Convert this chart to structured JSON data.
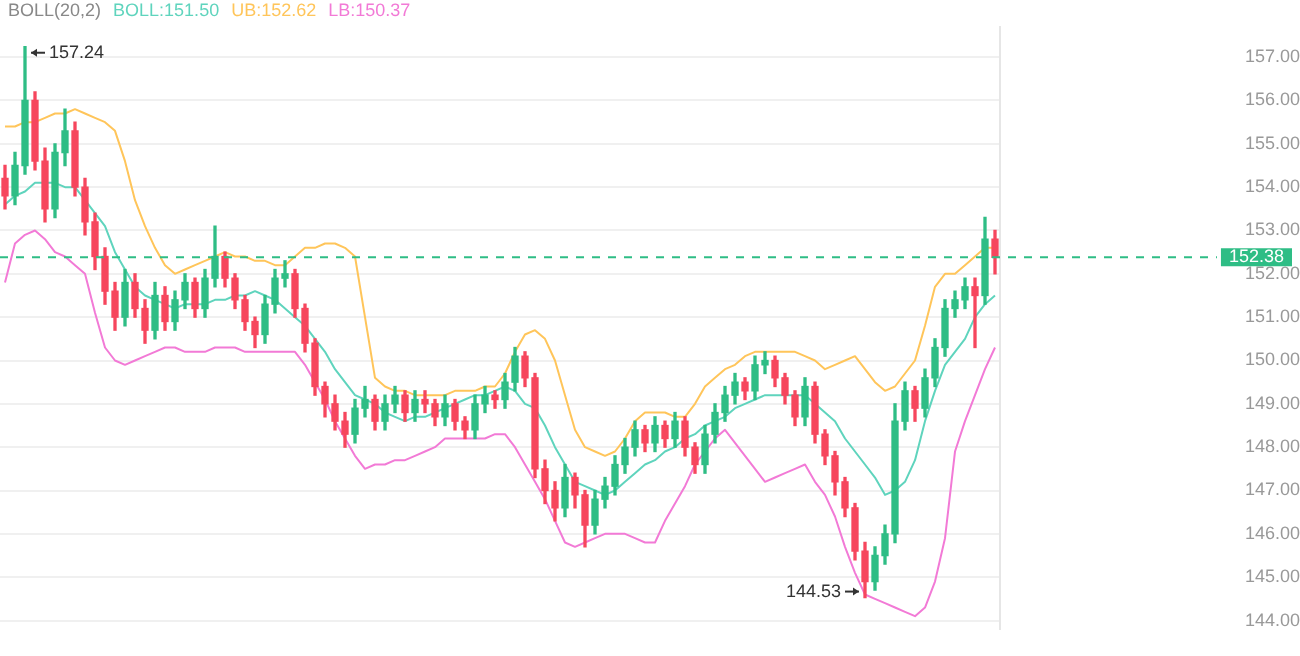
{
  "chart_data": {
    "type": "candlestick",
    "legend_title": "BOLL(20,2)",
    "tick_labels": "y",
    "grid": "y",
    "categories": [
      null,
      null,
      null,
      null,
      null,
      null,
      null,
      null,
      null,
      null,
      null,
      null,
      null,
      null,
      null,
      null,
      null,
      null,
      null,
      null,
      null,
      null,
      null,
      null,
      null,
      null,
      null,
      null,
      null,
      null,
      null,
      null,
      null,
      null,
      null,
      null,
      null,
      null,
      null,
      null,
      null,
      null,
      null,
      null,
      null,
      null,
      null,
      null,
      null,
      null,
      null,
      null,
      null,
      null,
      null,
      null,
      null,
      null,
      null,
      null,
      null,
      null,
      null,
      null,
      null,
      null,
      null,
      null,
      null,
      null,
      null,
      null,
      null,
      null,
      null,
      null,
      null,
      null,
      null,
      null,
      null,
      null,
      null,
      null,
      null,
      null,
      null,
      null,
      null,
      null,
      null,
      null,
      null,
      null,
      null,
      null,
      null,
      null,
      null,
      null
    ],
    "ylim": [
      143.8,
      157.7
    ],
    "yticks": [
      {
        "value": 144,
        "label": "144.00"
      },
      {
        "value": 145,
        "label": "145.00"
      },
      {
        "value": 146,
        "label": "146.00"
      },
      {
        "value": 147,
        "label": "147.00"
      },
      {
        "value": 148,
        "label": "148.00"
      },
      {
        "value": 149,
        "label": "149.00"
      },
      {
        "value": 150,
        "label": "150.00"
      },
      {
        "value": 151,
        "label": "151.00"
      },
      {
        "value": 152,
        "label": "152.00"
      },
      {
        "value": 153,
        "label": "153.00"
      },
      {
        "value": 154,
        "label": "154.00"
      },
      {
        "value": 155,
        "label": "155.00"
      },
      {
        "value": 156,
        "label": "156.00"
      },
      {
        "value": 157,
        "label": "157.00"
      }
    ],
    "ref_lines": [
      {
        "axis": "y",
        "value": 152.38,
        "label": "152.38",
        "color": "#2ebd85",
        "line_style": "dashed"
      }
    ],
    "annotations": [
      "157.24",
      "144.53"
    ],
    "series": [
      {
        "ohlc": [
          [
            154.2,
            154.5,
            153.5,
            153.8
          ],
          [
            153.8,
            154.8,
            153.6,
            154.5
          ],
          [
            154.5,
            157.24,
            154.3,
            156.0
          ],
          [
            156.0,
            156.2,
            154.4,
            154.6
          ],
          [
            154.6,
            154.9,
            153.2,
            153.5
          ],
          [
            153.5,
            155.0,
            153.3,
            154.8
          ],
          [
            154.8,
            155.8,
            154.5,
            155.3
          ],
          [
            155.3,
            155.5,
            153.8,
            154.0
          ],
          [
            154.0,
            154.2,
            152.9,
            153.2
          ],
          [
            153.2,
            153.4,
            152.1,
            152.4
          ],
          [
            152.4,
            152.6,
            151.3,
            151.6
          ],
          [
            151.6,
            151.8,
            150.7,
            151.0
          ],
          [
            151.0,
            152.1,
            150.8,
            151.8
          ],
          [
            151.8,
            152.0,
            151.0,
            151.2
          ],
          [
            151.2,
            151.4,
            150.4,
            150.7
          ],
          [
            150.7,
            151.8,
            150.5,
            151.5
          ],
          [
            151.5,
            151.7,
            150.7,
            150.9
          ],
          [
            150.9,
            151.6,
            150.7,
            151.4
          ],
          [
            151.4,
            152.0,
            151.2,
            151.8
          ],
          [
            151.8,
            151.9,
            151.0,
            151.2
          ],
          [
            151.2,
            152.1,
            151.0,
            151.9
          ],
          [
            151.9,
            153.1,
            151.7,
            152.4
          ],
          [
            152.4,
            152.5,
            151.7,
            151.9
          ],
          [
            151.9,
            152.0,
            151.2,
            151.4
          ],
          [
            151.4,
            151.5,
            150.7,
            150.9
          ],
          [
            150.9,
            151.0,
            150.3,
            150.6
          ],
          [
            150.6,
            151.5,
            150.4,
            151.3
          ],
          [
            151.3,
            152.1,
            151.1,
            151.9
          ],
          [
            151.9,
            152.3,
            151.7,
            152.0
          ],
          [
            152.0,
            152.1,
            151.0,
            151.2
          ],
          [
            151.2,
            151.3,
            150.2,
            150.4
          ],
          [
            150.4,
            150.5,
            149.2,
            149.4
          ],
          [
            149.4,
            149.5,
            148.7,
            149.0
          ],
          [
            149.0,
            149.2,
            148.4,
            148.6
          ],
          [
            148.6,
            148.8,
            148.0,
            148.3
          ],
          [
            148.3,
            149.1,
            148.1,
            148.9
          ],
          [
            148.9,
            149.4,
            148.7,
            149.1
          ],
          [
            149.1,
            149.2,
            148.4,
            148.6
          ],
          [
            148.6,
            149.2,
            148.4,
            149.0
          ],
          [
            149.0,
            149.4,
            148.8,
            149.2
          ],
          [
            149.2,
            149.3,
            148.6,
            148.8
          ],
          [
            148.8,
            149.3,
            148.6,
            149.1
          ],
          [
            149.1,
            149.3,
            148.8,
            149.0
          ],
          [
            149.0,
            149.1,
            148.5,
            148.7
          ],
          [
            148.7,
            149.2,
            148.5,
            149.0
          ],
          [
            149.0,
            149.1,
            148.4,
            148.6
          ],
          [
            148.6,
            148.7,
            148.2,
            148.4
          ],
          [
            148.4,
            149.2,
            148.2,
            149.0
          ],
          [
            149.0,
            149.4,
            148.8,
            149.2
          ],
          [
            149.2,
            149.3,
            148.9,
            149.1
          ],
          [
            149.1,
            149.7,
            148.9,
            149.5
          ],
          [
            149.5,
            150.3,
            149.3,
            150.1
          ],
          [
            150.1,
            150.2,
            149.4,
            149.6
          ],
          [
            149.6,
            149.7,
            147.3,
            147.5
          ],
          [
            147.5,
            147.7,
            146.7,
            147.0
          ],
          [
            147.0,
            147.2,
            146.3,
            146.6
          ],
          [
            146.6,
            147.6,
            146.4,
            147.3
          ],
          [
            147.3,
            147.4,
            146.6,
            146.9
          ],
          [
            146.9,
            147.0,
            145.7,
            146.2
          ],
          [
            146.2,
            147.0,
            146.0,
            146.8
          ],
          [
            146.8,
            147.3,
            146.6,
            147.1
          ],
          [
            147.1,
            147.8,
            146.9,
            147.6
          ],
          [
            147.6,
            148.2,
            147.4,
            148.0
          ],
          [
            148.0,
            148.6,
            147.8,
            148.4
          ],
          [
            148.4,
            148.5,
            147.9,
            148.1
          ],
          [
            148.1,
            148.7,
            147.9,
            148.5
          ],
          [
            148.5,
            148.6,
            148.0,
            148.2
          ],
          [
            148.2,
            148.8,
            148.0,
            148.6
          ],
          [
            148.6,
            148.7,
            147.8,
            148.0
          ],
          [
            148.0,
            148.1,
            147.4,
            147.6
          ],
          [
            147.6,
            148.5,
            147.4,
            148.3
          ],
          [
            148.3,
            149.0,
            148.1,
            148.8
          ],
          [
            148.8,
            149.4,
            148.6,
            149.2
          ],
          [
            149.2,
            149.7,
            149.0,
            149.5
          ],
          [
            149.5,
            149.6,
            149.1,
            149.3
          ],
          [
            149.3,
            150.1,
            149.1,
            149.9
          ],
          [
            149.9,
            150.2,
            149.7,
            150.0
          ],
          [
            150.0,
            150.1,
            149.4,
            149.6
          ],
          [
            149.6,
            149.7,
            149.0,
            149.2
          ],
          [
            149.2,
            149.3,
            148.5,
            148.7
          ],
          [
            148.7,
            149.6,
            148.5,
            149.4
          ],
          [
            149.4,
            149.5,
            148.1,
            148.3
          ],
          [
            148.3,
            148.4,
            147.6,
            147.8
          ],
          [
            147.8,
            147.9,
            146.9,
            147.2
          ],
          [
            147.2,
            147.3,
            146.4,
            146.6
          ],
          [
            146.6,
            146.7,
            145.4,
            145.6
          ],
          [
            145.6,
            145.8,
            144.53,
            144.9
          ],
          [
            144.9,
            145.7,
            144.7,
            145.5
          ],
          [
            145.5,
            146.2,
            145.3,
            146.0
          ],
          [
            146.0,
            149.0,
            145.8,
            148.6
          ],
          [
            148.6,
            149.5,
            148.4,
            149.3
          ],
          [
            149.3,
            149.4,
            148.6,
            148.9
          ],
          [
            148.9,
            149.8,
            148.7,
            149.6
          ],
          [
            149.6,
            150.5,
            149.4,
            150.3
          ],
          [
            150.3,
            151.4,
            150.1,
            151.2
          ],
          [
            151.2,
            151.6,
            151.0,
            151.4
          ],
          [
            151.4,
            151.9,
            151.2,
            151.7
          ],
          [
            151.7,
            151.9,
            150.3,
            151.5
          ],
          [
            151.5,
            153.3,
            151.3,
            152.8
          ],
          [
            152.8,
            153.0,
            152.0,
            152.38
          ]
        ],
        "colors": [
          "#f6465d",
          "#2ebd85",
          "#2ebd85",
          "#f6465d",
          "#f6465d",
          "#2ebd85",
          "#2ebd85",
          "#f6465d",
          "#f6465d",
          "#f6465d",
          "#f6465d",
          "#f6465d",
          "#2ebd85",
          "#f6465d",
          "#f6465d",
          "#2ebd85",
          "#f6465d",
          "#2ebd85",
          "#2ebd85",
          "#f6465d",
          "#2ebd85",
          "#2ebd85",
          "#f6465d",
          "#f6465d",
          "#f6465d",
          "#f6465d",
          "#2ebd85",
          "#2ebd85",
          "#2ebd85",
          "#f6465d",
          "#f6465d",
          "#f6465d",
          "#f6465d",
          "#f6465d",
          "#f6465d",
          "#2ebd85",
          "#2ebd85",
          "#f6465d",
          "#2ebd85",
          "#2ebd85",
          "#f6465d",
          "#2ebd85",
          "#f6465d",
          "#f6465d",
          "#2ebd85",
          "#f6465d",
          "#f6465d",
          "#2ebd85",
          "#2ebd85",
          "#f6465d",
          "#2ebd85",
          "#2ebd85",
          "#f6465d",
          "#f6465d",
          "#f6465d",
          "#f6465d",
          "#2ebd85",
          "#f6465d",
          "#f6465d",
          "#2ebd85",
          "#2ebd85",
          "#2ebd85",
          "#2ebd85",
          "#2ebd85",
          "#f6465d",
          "#2ebd85",
          "#f6465d",
          "#2ebd85",
          "#f6465d",
          "#f6465d",
          "#2ebd85",
          "#2ebd85",
          "#2ebd85",
          "#2ebd85",
          "#f6465d",
          "#2ebd85",
          "#2ebd85",
          "#f6465d",
          "#f6465d",
          "#f6465d",
          "#2ebd85",
          "#f6465d",
          "#f6465d",
          "#f6465d",
          "#f6465d",
          "#f6465d",
          "#f6465d",
          "#2ebd85",
          "#2ebd85",
          "#2ebd85",
          "#2ebd85",
          "#f6465d",
          "#2ebd85",
          "#2ebd85",
          "#2ebd85",
          "#2ebd85",
          "#2ebd85",
          "#f6465d",
          "#2ebd85",
          "#f6465d"
        ]
      },
      {
        "type": "line",
        "name": "BOLL:151.50",
        "color": "#5fd4bd",
        "values": [
          153.6,
          153.8,
          153.9,
          154.1,
          154.1,
          154.1,
          154.0,
          154.0,
          153.7,
          153.4,
          153.1,
          152.5,
          152.1,
          151.7,
          151.5,
          151.4,
          151.3,
          151.2,
          151.3,
          151.3,
          151.3,
          151.4,
          151.4,
          151.5,
          151.5,
          151.6,
          151.5,
          151.4,
          151.2,
          151.0,
          150.8,
          150.5,
          150.2,
          149.8,
          149.5,
          149.2,
          149.1,
          149.0,
          148.8,
          148.7,
          148.6,
          148.7,
          148.7,
          148.8,
          148.9,
          149.0,
          149.1,
          149.2,
          149.2,
          149.3,
          149.4,
          149.3,
          149.0,
          148.9,
          148.5,
          148.0,
          147.6,
          147.2,
          147.1,
          147.0,
          146.9,
          147.0,
          147.2,
          147.4,
          147.6,
          147.7,
          147.9,
          148.0,
          148.2,
          148.3,
          148.5,
          148.6,
          148.7,
          148.9,
          149.0,
          149.1,
          149.2,
          149.2,
          149.2,
          149.2,
          149.2,
          149.0,
          148.8,
          148.6,
          148.2,
          147.9,
          147.6,
          147.3,
          146.9,
          147.0,
          147.2,
          147.7,
          148.6,
          149.3,
          149.9,
          150.2,
          150.5,
          151.0,
          151.3,
          151.5
        ]
      },
      {
        "type": "line",
        "name": "UB:152.62",
        "color": "#ffc55a",
        "values": [
          155.4,
          155.4,
          155.5,
          155.5,
          155.6,
          155.7,
          155.7,
          155.8,
          155.7,
          155.6,
          155.5,
          155.3,
          154.6,
          153.7,
          153.1,
          152.6,
          152.2,
          152.0,
          152.1,
          152.2,
          152.3,
          152.4,
          152.5,
          152.4,
          152.4,
          152.3,
          152.3,
          152.2,
          152.2,
          152.4,
          152.6,
          152.6,
          152.7,
          152.7,
          152.6,
          152.4,
          151.0,
          149.6,
          149.4,
          149.3,
          149.3,
          149.2,
          149.2,
          149.2,
          149.2,
          149.3,
          149.3,
          149.3,
          149.4,
          149.4,
          149.7,
          150.2,
          150.6,
          150.7,
          150.5,
          150.0,
          149.2,
          148.4,
          148.0,
          147.9,
          147.8,
          147.9,
          148.2,
          148.6,
          148.8,
          148.8,
          148.8,
          148.7,
          148.7,
          149.0,
          149.4,
          149.6,
          149.8,
          149.9,
          150.1,
          150.2,
          150.2,
          150.2,
          150.2,
          150.2,
          150.1,
          150.0,
          149.8,
          149.9,
          150.0,
          150.1,
          149.8,
          149.5,
          149.3,
          149.4,
          149.7,
          150.0,
          150.8,
          151.7,
          152.0,
          152.0,
          152.2,
          152.4,
          152.6,
          152.6
        ]
      },
      {
        "type": "line",
        "name": "LB:150.37",
        "color": "#f27ad6",
        "values": [
          151.8,
          152.7,
          152.9,
          153.0,
          152.8,
          152.5,
          152.4,
          152.2,
          152.0,
          151.1,
          150.3,
          150.0,
          149.9,
          150.0,
          150.1,
          150.2,
          150.3,
          150.3,
          150.2,
          150.2,
          150.2,
          150.3,
          150.3,
          150.3,
          150.2,
          150.2,
          150.2,
          150.2,
          150.2,
          150.2,
          149.9,
          149.5,
          149.1,
          148.6,
          148.2,
          147.8,
          147.5,
          147.6,
          147.6,
          147.7,
          147.7,
          147.8,
          147.9,
          148.0,
          148.2,
          148.2,
          148.2,
          148.2,
          148.2,
          148.3,
          148.3,
          148.0,
          147.6,
          147.2,
          146.8,
          146.3,
          145.8,
          145.7,
          145.8,
          145.9,
          146.0,
          146.0,
          146.0,
          145.9,
          145.8,
          145.8,
          146.3,
          146.7,
          147.1,
          147.6,
          147.9,
          148.2,
          148.4,
          148.1,
          147.8,
          147.5,
          147.2,
          147.3,
          147.4,
          147.5,
          147.6,
          147.2,
          146.9,
          146.4,
          145.7,
          145.1,
          144.6,
          144.5,
          144.4,
          144.3,
          144.2,
          144.1,
          144.3,
          144.9,
          145.9,
          147.9,
          148.6,
          149.2,
          149.8,
          150.3
        ]
      }
    ]
  }
}
